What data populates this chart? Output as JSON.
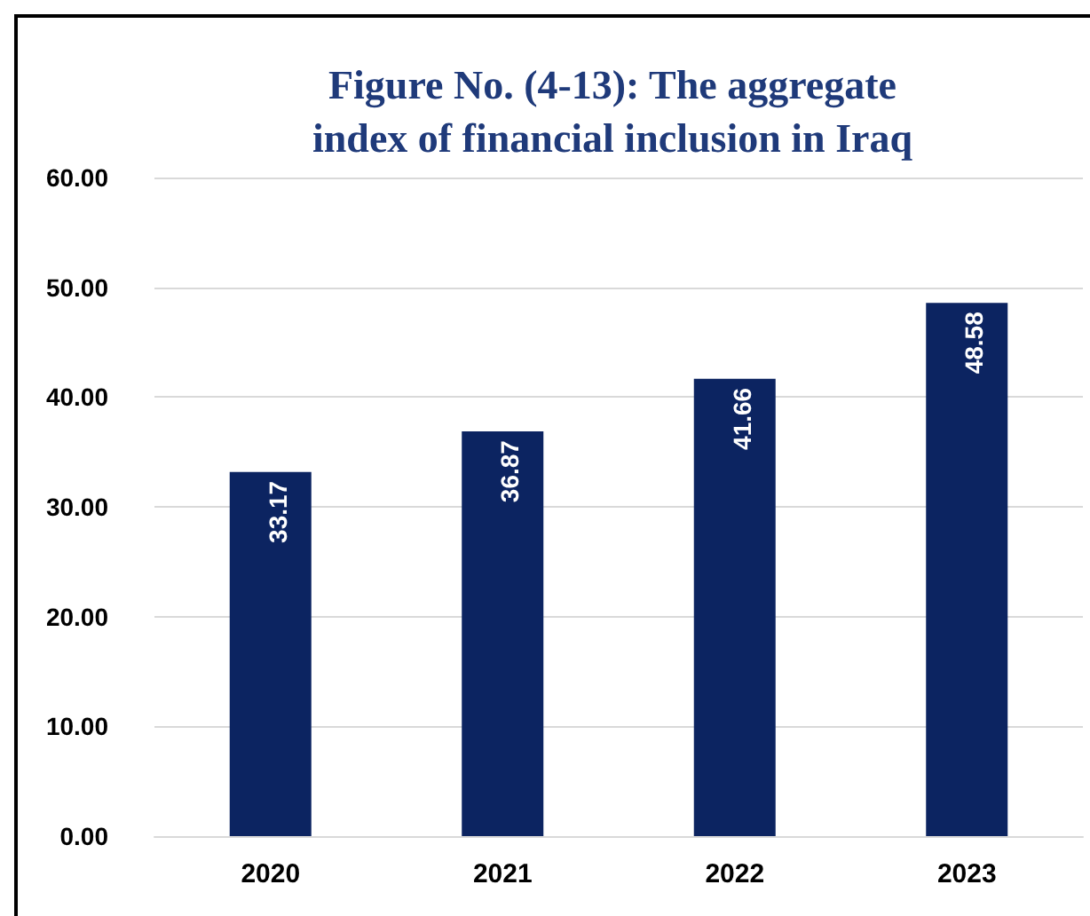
{
  "chart_data": {
    "type": "bar",
    "title": "Figure No. (4-13): The aggregate\nindex of financial inclusion in Iraq",
    "categories": [
      "2020",
      "2021",
      "2022",
      "2023"
    ],
    "values": [
      33.17,
      36.87,
      41.66,
      48.58
    ],
    "color": "#0c2461",
    "ylim": [
      0,
      60
    ],
    "yticks": [
      {
        "value": 0,
        "label": "0.00"
      },
      {
        "value": 10,
        "label": "10.00"
      },
      {
        "value": 20,
        "label": "20.00"
      },
      {
        "value": 30,
        "label": "30.00"
      },
      {
        "value": 40,
        "label": "40.00"
      },
      {
        "value": 50,
        "label": "50.00"
      },
      {
        "value": 60,
        "label": "60.00"
      }
    ],
    "grid": "y",
    "data_labels": true
  }
}
